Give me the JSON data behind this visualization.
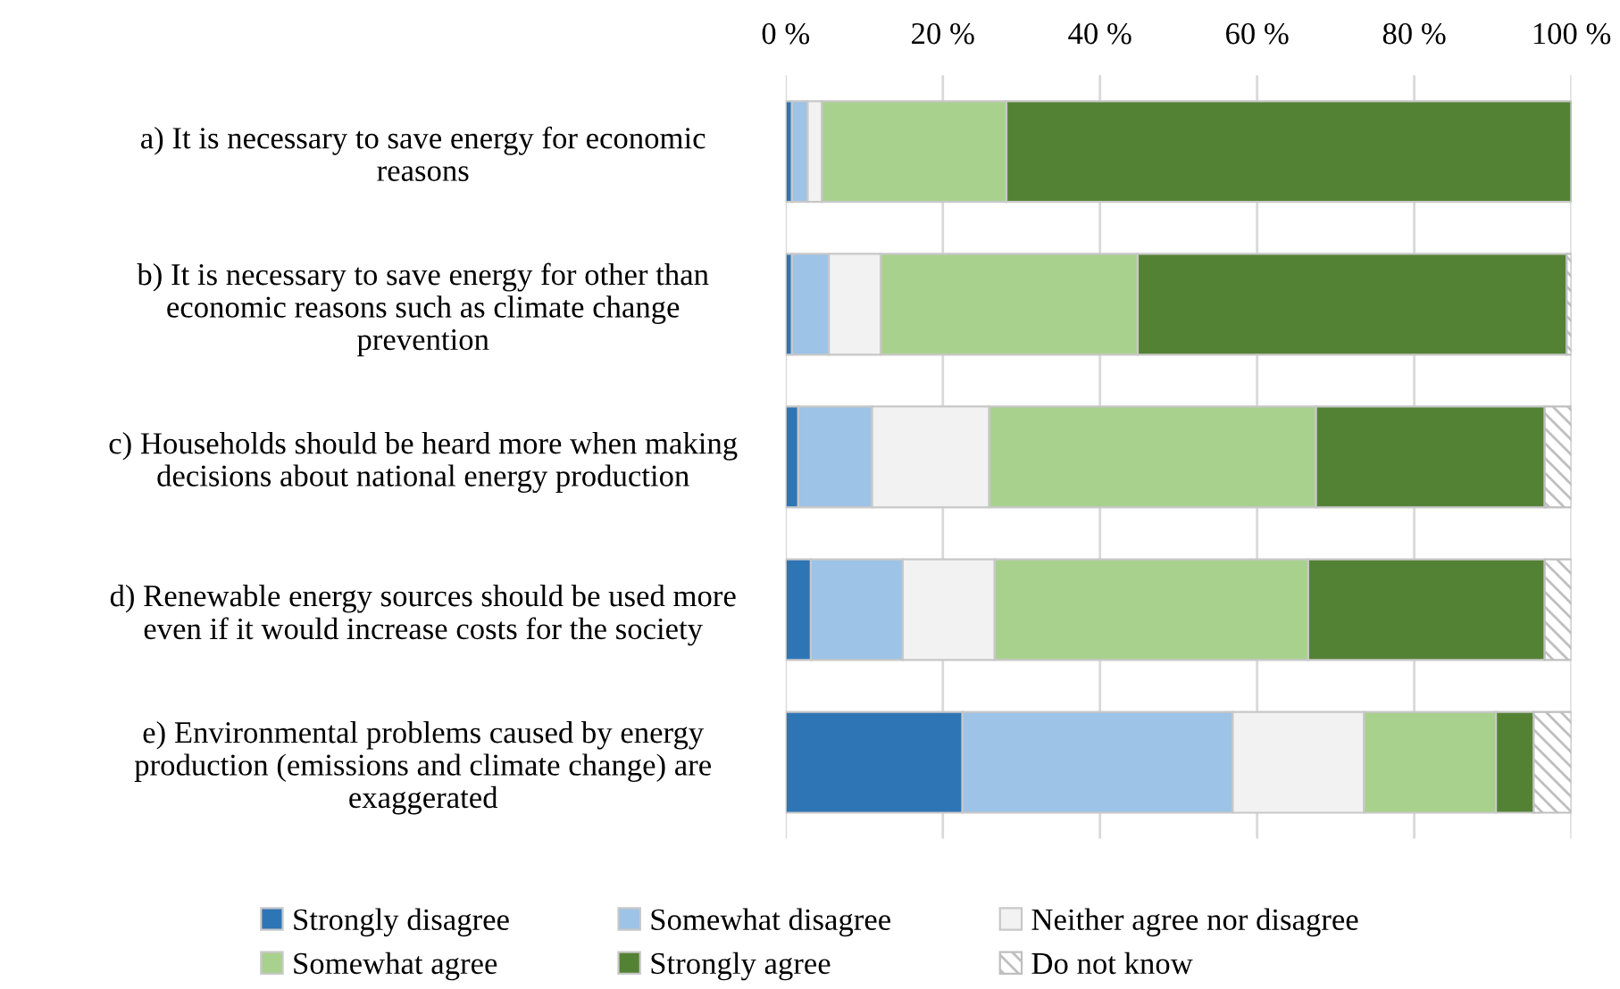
{
  "chart_data": {
    "type": "bar",
    "orientation": "horizontal",
    "stacked": true,
    "categories": [
      "a) It is necessary to save energy for economic\nreasons",
      "b) It is necessary to save energy for other than\neconomic reasons such as climate change\nprevention",
      "c) Households should be heard more when making\ndecisions about national energy production",
      "d) Renewable energy sources should be used more\neven if it would increase costs for the society",
      "e) Environmental problems caused by energy\nproduction (emissions and climate change) are\nexaggerated"
    ],
    "series": [
      {
        "name": "Strongly disagree",
        "color": "#2e75b6",
        "values": [
          0.8,
          0.8,
          1.6,
          3.2,
          22.5
        ]
      },
      {
        "name": "Somewhat disagree",
        "color": "#9dc3e6",
        "values": [
          2.0,
          4.7,
          9.4,
          11.7,
          34.4
        ]
      },
      {
        "name": "Neither agree nor disagree",
        "color": "#f2f2f2",
        "values": [
          1.8,
          6.6,
          14.9,
          11.7,
          16.7
        ]
      },
      {
        "name": "Somewhat agree",
        "color": "#a9d18e",
        "values": [
          23.5,
          32.7,
          41.6,
          39.9,
          16.8
        ]
      },
      {
        "name": "Strongly agree",
        "color": "#548235",
        "values": [
          71.9,
          54.6,
          29.1,
          30.1,
          4.8
        ]
      },
      {
        "name": "Do not know",
        "color": "#bfbfbf",
        "values": [
          0,
          0.6,
          3.4,
          3.4,
          4.8
        ]
      }
    ],
    "xlim": [
      0,
      100
    ],
    "xticks": [
      {
        "value": 0,
        "label": "0 %"
      },
      {
        "value": 20,
        "label": "20 %"
      },
      {
        "value": 40,
        "label": "40 %"
      },
      {
        "value": 60,
        "label": "60 %"
      },
      {
        "value": 80,
        "label": "80 %"
      },
      {
        "value": 100,
        "label": "100 %"
      }
    ],
    "grid": "x",
    "legend": "bottom"
  }
}
